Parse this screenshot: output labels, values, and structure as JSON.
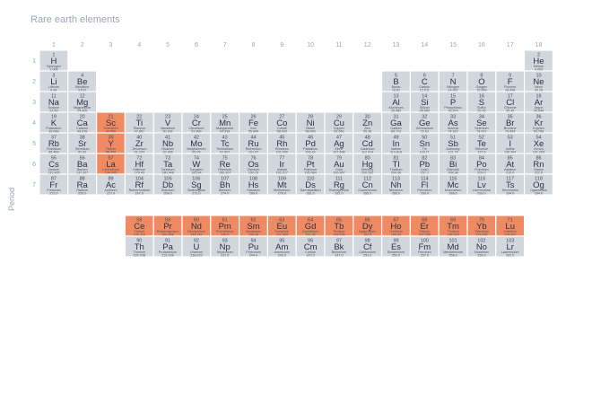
{
  "title": "Rare earth elements",
  "chart_data": {
    "type": "table",
    "title": "Rare earth elements",
    "ylabel": "Period",
    "xlabel": "",
    "group_labels": [
      "1",
      "2",
      "3",
      "4",
      "5",
      "6",
      "7",
      "8",
      "9",
      "10",
      "11",
      "12",
      "13",
      "14",
      "15",
      "16",
      "17",
      "18"
    ],
    "period_labels": [
      "1",
      "2",
      "3",
      "4",
      "5",
      "6",
      "7"
    ],
    "colors": {
      "default": "#d2d6dd",
      "rare_earth": "#ef8a62",
      "grid_stroke": "#ffffff"
    },
    "elements": [
      {
        "n": "1",
        "s": "H",
        "name": "Hydrogen",
        "m": "1.008",
        "p": 1,
        "g": 1,
        "r": false
      },
      {
        "n": "2",
        "s": "He",
        "name": "Helium",
        "m": "4.003",
        "p": 1,
        "g": 18,
        "r": false
      },
      {
        "n": "3",
        "s": "Li",
        "name": "Lithium",
        "m": "6.94",
        "p": 2,
        "g": 1,
        "r": false
      },
      {
        "n": "4",
        "s": "Be",
        "name": "Beryllium",
        "m": "9.012",
        "p": 2,
        "g": 2,
        "r": false
      },
      {
        "n": "5",
        "s": "B",
        "name": "Boron",
        "m": "10.81",
        "p": 2,
        "g": 13,
        "r": false
      },
      {
        "n": "6",
        "s": "C",
        "name": "Carbon",
        "m": "12.011",
        "p": 2,
        "g": 14,
        "r": false
      },
      {
        "n": "7",
        "s": "N",
        "name": "Nitrogen",
        "m": "14.007",
        "p": 2,
        "g": 15,
        "r": false
      },
      {
        "n": "8",
        "s": "O",
        "name": "Oxygen",
        "m": "15.999",
        "p": 2,
        "g": 16,
        "r": false
      },
      {
        "n": "9",
        "s": "F",
        "name": "Fluorine",
        "m": "18.998",
        "p": 2,
        "g": 17,
        "r": false
      },
      {
        "n": "10",
        "s": "Ne",
        "name": "Neon",
        "m": "20.18",
        "p": 2,
        "g": 18,
        "r": false
      },
      {
        "n": "11",
        "s": "Na",
        "name": "Sodium",
        "m": "22.99",
        "p": 3,
        "g": 1,
        "r": false
      },
      {
        "n": "12",
        "s": "Mg",
        "name": "Magnesium",
        "m": "24.305",
        "p": 3,
        "g": 2,
        "r": false
      },
      {
        "n": "13",
        "s": "Al",
        "name": "Aluminum",
        "m": "26.982",
        "p": 3,
        "g": 13,
        "r": false
      },
      {
        "n": "14",
        "s": "Si",
        "name": "Silicon",
        "m": "28.085",
        "p": 3,
        "g": 14,
        "r": false
      },
      {
        "n": "15",
        "s": "P",
        "name": "Phosphorus",
        "m": "30.974",
        "p": 3,
        "g": 15,
        "r": false
      },
      {
        "n": "16",
        "s": "S",
        "name": "Sulfur",
        "m": "32.06",
        "p": 3,
        "g": 16,
        "r": false
      },
      {
        "n": "17",
        "s": "Cl",
        "name": "Chlorine",
        "m": "35.45",
        "p": 3,
        "g": 17,
        "r": false
      },
      {
        "n": "18",
        "s": "Ar",
        "name": "Argon",
        "m": "39.948",
        "p": 3,
        "g": 18,
        "r": false
      },
      {
        "n": "19",
        "s": "K",
        "name": "Potassium",
        "m": "39.098",
        "p": 4,
        "g": 1,
        "r": false
      },
      {
        "n": "20",
        "s": "Ca",
        "name": "Calcium",
        "m": "40.078",
        "p": 4,
        "g": 2,
        "r": false
      },
      {
        "n": "21",
        "s": "Sc",
        "name": "Scandium",
        "m": "44.956",
        "p": 4,
        "g": 3,
        "r": true
      },
      {
        "n": "22",
        "s": "Ti",
        "name": "Titanium",
        "m": "47.867",
        "p": 4,
        "g": 4,
        "r": false
      },
      {
        "n": "23",
        "s": "V",
        "name": "Vanadium",
        "m": "50.942",
        "p": 4,
        "g": 5,
        "r": false
      },
      {
        "n": "24",
        "s": "Cr",
        "name": "Chromium",
        "m": "51.996",
        "p": 4,
        "g": 6,
        "r": false
      },
      {
        "n": "25",
        "s": "Mn",
        "name": "Manganese",
        "m": "54.938",
        "p": 4,
        "g": 7,
        "r": false
      },
      {
        "n": "26",
        "s": "Fe",
        "name": "Iron",
        "m": "55.845",
        "p": 4,
        "g": 8,
        "r": false
      },
      {
        "n": "27",
        "s": "Co",
        "name": "Cobalt",
        "m": "58.933",
        "p": 4,
        "g": 9,
        "r": false
      },
      {
        "n": "28",
        "s": "Ni",
        "name": "Nickel",
        "m": "58.693",
        "p": 4,
        "g": 10,
        "r": false
      },
      {
        "n": "29",
        "s": "Cu",
        "name": "Copper",
        "m": "63.546",
        "p": 4,
        "g": 11,
        "r": false
      },
      {
        "n": "30",
        "s": "Zn",
        "name": "Zinc",
        "m": "65.38",
        "p": 4,
        "g": 12,
        "r": false
      },
      {
        "n": "31",
        "s": "Ga",
        "name": "Gallium",
        "m": "69.723",
        "p": 4,
        "g": 13,
        "r": false
      },
      {
        "n": "32",
        "s": "Ge",
        "name": "Germanium",
        "m": "72.63",
        "p": 4,
        "g": 14,
        "r": false
      },
      {
        "n": "33",
        "s": "As",
        "name": "Arsenic",
        "m": "74.922",
        "p": 4,
        "g": 15,
        "r": false
      },
      {
        "n": "34",
        "s": "Se",
        "name": "Selenium",
        "m": "78.971",
        "p": 4,
        "g": 16,
        "r": false
      },
      {
        "n": "35",
        "s": "Br",
        "name": "Bromine",
        "m": "79.904",
        "p": 4,
        "g": 17,
        "r": false
      },
      {
        "n": "36",
        "s": "Kr",
        "name": "Krypton",
        "m": "83.798",
        "p": 4,
        "g": 18,
        "r": false
      },
      {
        "n": "37",
        "s": "Rb",
        "name": "Rubidium",
        "m": "85.468",
        "p": 5,
        "g": 1,
        "r": false
      },
      {
        "n": "38",
        "s": "Sr",
        "name": "Strontium",
        "m": "87.62",
        "p": 5,
        "g": 2,
        "r": false
      },
      {
        "n": "39",
        "s": "Y",
        "name": "Yttrium",
        "m": "88.906",
        "p": 5,
        "g": 3,
        "r": true
      },
      {
        "n": "40",
        "s": "Zr",
        "name": "Zirconium",
        "m": "91.224",
        "p": 5,
        "g": 4,
        "r": false
      },
      {
        "n": "41",
        "s": "Nb",
        "name": "Niobium",
        "m": "92.906",
        "p": 5,
        "g": 5,
        "r": false
      },
      {
        "n": "42",
        "s": "Mo",
        "name": "Molybdenum",
        "m": "95.95",
        "p": 5,
        "g": 6,
        "r": false
      },
      {
        "n": "43",
        "s": "Tc",
        "name": "Technetium",
        "m": "97.907",
        "p": 5,
        "g": 7,
        "r": false
      },
      {
        "n": "44",
        "s": "Ru",
        "name": "Ruthenium",
        "m": "101.07",
        "p": 5,
        "g": 8,
        "r": false
      },
      {
        "n": "45",
        "s": "Rh",
        "name": "Rhodium",
        "m": "102.906",
        "p": 5,
        "g": 9,
        "r": false
      },
      {
        "n": "46",
        "s": "Pd",
        "name": "Palladium",
        "m": "106.42",
        "p": 5,
        "g": 10,
        "r": false
      },
      {
        "n": "47",
        "s": "Ag",
        "name": "Silver",
        "m": "107.868",
        "p": 5,
        "g": 11,
        "r": false
      },
      {
        "n": "48",
        "s": "Cd",
        "name": "Cadmium",
        "m": "112.414",
        "p": 5,
        "g": 12,
        "r": false
      },
      {
        "n": "49",
        "s": "In",
        "name": "Indium",
        "m": "114.818",
        "p": 5,
        "g": 13,
        "r": false
      },
      {
        "n": "50",
        "s": "Sn",
        "name": "Tin",
        "m": "118.71",
        "p": 5,
        "g": 14,
        "r": false
      },
      {
        "n": "51",
        "s": "Sb",
        "name": "Antimony",
        "m": "121.76",
        "p": 5,
        "g": 15,
        "r": false
      },
      {
        "n": "52",
        "s": "Te",
        "name": "Tellurium",
        "m": "127.6",
        "p": 5,
        "g": 16,
        "r": false
      },
      {
        "n": "53",
        "s": "I",
        "name": "Iodine",
        "m": "126.904",
        "p": 5,
        "g": 17,
        "r": false
      },
      {
        "n": "54",
        "s": "Xe",
        "name": "Xenon",
        "m": "131.293",
        "p": 5,
        "g": 18,
        "r": false
      },
      {
        "n": "55",
        "s": "Cs",
        "name": "Cesium",
        "m": "132.905",
        "p": 6,
        "g": 1,
        "r": false
      },
      {
        "n": "56",
        "s": "Ba",
        "name": "Barium",
        "m": "137.327",
        "p": 6,
        "g": 2,
        "r": false
      },
      {
        "n": "57",
        "s": "La",
        "name": "Lanthanum",
        "m": "138.905",
        "p": 6,
        "g": 3,
        "r": true
      },
      {
        "n": "72",
        "s": "Hf",
        "name": "Hafnium",
        "m": "178.49",
        "p": 6,
        "g": 4,
        "r": false
      },
      {
        "n": "73",
        "s": "Ta",
        "name": "Tantalum",
        "m": "180.948",
        "p": 6,
        "g": 5,
        "r": false
      },
      {
        "n": "74",
        "s": "W",
        "name": "Tungsten",
        "m": "183.84",
        "p": 6,
        "g": 6,
        "r": false
      },
      {
        "n": "75",
        "s": "Re",
        "name": "Rhenium",
        "m": "186.207",
        "p": 6,
        "g": 7,
        "r": false
      },
      {
        "n": "76",
        "s": "Os",
        "name": "Osmium",
        "m": "190.23",
        "p": 6,
        "g": 8,
        "r": false
      },
      {
        "n": "77",
        "s": "Ir",
        "name": "Iridium",
        "m": "192.217",
        "p": 6,
        "g": 9,
        "r": false
      },
      {
        "n": "78",
        "s": "Pt",
        "name": "Platinum",
        "m": "195.084",
        "p": 6,
        "g": 10,
        "r": false
      },
      {
        "n": "79",
        "s": "Au",
        "name": "Gold",
        "m": "196.967",
        "p": 6,
        "g": 11,
        "r": false
      },
      {
        "n": "80",
        "s": "Hg",
        "name": "Mercury",
        "m": "200.592",
        "p": 6,
        "g": 12,
        "r": false
      },
      {
        "n": "81",
        "s": "Tl",
        "name": "Thallium",
        "m": "204.38",
        "p": 6,
        "g": 13,
        "r": false
      },
      {
        "n": "82",
        "s": "Pb",
        "name": "Lead",
        "m": "207.2",
        "p": 6,
        "g": 14,
        "r": false
      },
      {
        "n": "83",
        "s": "Bi",
        "name": "Bismuth",
        "m": "208.98",
        "p": 6,
        "g": 15,
        "r": false
      },
      {
        "n": "84",
        "s": "Po",
        "name": "Polonium",
        "m": "209.0",
        "p": 6,
        "g": 16,
        "r": false
      },
      {
        "n": "85",
        "s": "At",
        "name": "Astatine",
        "m": "210.0",
        "p": 6,
        "g": 17,
        "r": false
      },
      {
        "n": "86",
        "s": "Rn",
        "name": "Radon",
        "m": "222.0",
        "p": 6,
        "g": 18,
        "r": false
      },
      {
        "n": "87",
        "s": "Fr",
        "name": "Francium",
        "m": "223.0",
        "p": 7,
        "g": 1,
        "r": false
      },
      {
        "n": "88",
        "s": "Ra",
        "name": "Radium",
        "m": "226.0",
        "p": 7,
        "g": 2,
        "r": false
      },
      {
        "n": "89",
        "s": "Ac",
        "name": "Actinium",
        "m": "227.0",
        "p": 7,
        "g": 3,
        "r": false
      },
      {
        "n": "104",
        "s": "Rf",
        "name": "Rutherfordium",
        "m": "267.0",
        "p": 7,
        "g": 4,
        "r": false
      },
      {
        "n": "105",
        "s": "Db",
        "name": "Dubnium",
        "m": "268.0",
        "p": 7,
        "g": 5,
        "r": false
      },
      {
        "n": "106",
        "s": "Sg",
        "name": "Seaborgium",
        "m": "271.0",
        "p": 7,
        "g": 6,
        "r": false
      },
      {
        "n": "107",
        "s": "Bh",
        "name": "Bohrium",
        "m": "274.0",
        "p": 7,
        "g": 7,
        "r": false
      },
      {
        "n": "108",
        "s": "Hs",
        "name": "Hassium",
        "m": "269.0",
        "p": 7,
        "g": 8,
        "r": false
      },
      {
        "n": "109",
        "s": "Mt",
        "name": "Meitnerium",
        "m": "276.0",
        "p": 7,
        "g": 9,
        "r": false
      },
      {
        "n": "110",
        "s": "Ds",
        "name": "Darmstadtium",
        "m": "281.0",
        "p": 7,
        "g": 10,
        "r": false
      },
      {
        "n": "111",
        "s": "Rg",
        "name": "Roentgenium",
        "m": "281.0",
        "p": 7,
        "g": 11,
        "r": false
      },
      {
        "n": "112",
        "s": "Cn",
        "name": "Copernicium",
        "m": "285.0",
        "p": 7,
        "g": 12,
        "r": false
      },
      {
        "n": "113",
        "s": "Nh",
        "name": "Nihonium",
        "m": "286.0",
        "p": 7,
        "g": 13,
        "r": false
      },
      {
        "n": "114",
        "s": "Fl",
        "name": "Flerovium",
        "m": "289.0",
        "p": 7,
        "g": 14,
        "r": false
      },
      {
        "n": "115",
        "s": "Mc",
        "name": "Moscovium",
        "m": "288.0",
        "p": 7,
        "g": 15,
        "r": false
      },
      {
        "n": "116",
        "s": "Lv",
        "name": "Livermorium",
        "m": "293.0",
        "p": 7,
        "g": 16,
        "r": false
      },
      {
        "n": "117",
        "s": "Ts",
        "name": "Tennessine",
        "m": "294.0",
        "p": 7,
        "g": 17,
        "r": false
      },
      {
        "n": "118",
        "s": "Og",
        "name": "Oganesson",
        "m": "294.0",
        "p": 7,
        "g": 18,
        "r": false
      },
      {
        "n": "58",
        "s": "Ce",
        "name": "Cerium",
        "m": "140.116",
        "p": 9,
        "g": 4,
        "r": true
      },
      {
        "n": "59",
        "s": "Pr",
        "name": "Praseodymium",
        "m": "140.908",
        "p": 9,
        "g": 5,
        "r": true
      },
      {
        "n": "60",
        "s": "Nd",
        "name": "Neodymium",
        "m": "144.242",
        "p": 9,
        "g": 6,
        "r": true
      },
      {
        "n": "61",
        "s": "Pm",
        "name": "Promethium",
        "m": "145.0",
        "p": 9,
        "g": 7,
        "r": true
      },
      {
        "n": "62",
        "s": "Sm",
        "name": "Samarium",
        "m": "150.36",
        "p": 9,
        "g": 8,
        "r": true
      },
      {
        "n": "63",
        "s": "Eu",
        "name": "Europium",
        "m": "151.964",
        "p": 9,
        "g": 9,
        "r": true
      },
      {
        "n": "64",
        "s": "Gd",
        "name": "Gadolinium",
        "m": "157.25",
        "p": 9,
        "g": 10,
        "r": true
      },
      {
        "n": "65",
        "s": "Tb",
        "name": "Terbium",
        "m": "158.925",
        "p": 9,
        "g": 11,
        "r": true
      },
      {
        "n": "66",
        "s": "Dy",
        "name": "Dysprosium",
        "m": "162.5",
        "p": 9,
        "g": 12,
        "r": true
      },
      {
        "n": "67",
        "s": "Ho",
        "name": "Holmium",
        "m": "164.93",
        "p": 9,
        "g": 13,
        "r": true
      },
      {
        "n": "68",
        "s": "Er",
        "name": "Erbium",
        "m": "167.259",
        "p": 9,
        "g": 14,
        "r": true
      },
      {
        "n": "69",
        "s": "Tm",
        "name": "Thulium",
        "m": "168.934",
        "p": 9,
        "g": 15,
        "r": true
      },
      {
        "n": "70",
        "s": "Yb",
        "name": "Ytterbium",
        "m": "173.045",
        "p": 9,
        "g": 16,
        "r": true
      },
      {
        "n": "71",
        "s": "Lu",
        "name": "Lutetium",
        "m": "174.967",
        "p": 9,
        "g": 17,
        "r": true
      },
      {
        "n": "90",
        "s": "Th",
        "name": "Thorium",
        "m": "232.038",
        "p": 10,
        "g": 4,
        "r": false
      },
      {
        "n": "91",
        "s": "Pa",
        "name": "Protactinium",
        "m": "231.036",
        "p": 10,
        "g": 5,
        "r": false
      },
      {
        "n": "92",
        "s": "U",
        "name": "Uranium",
        "m": "238.029",
        "p": 10,
        "g": 6,
        "r": false
      },
      {
        "n": "93",
        "s": "Np",
        "name": "Neptunium",
        "m": "237.0",
        "p": 10,
        "g": 7,
        "r": false
      },
      {
        "n": "94",
        "s": "Pu",
        "name": "Plutonium",
        "m": "244.0",
        "p": 10,
        "g": 8,
        "r": false
      },
      {
        "n": "95",
        "s": "Am",
        "name": "Americium",
        "m": "243.0",
        "p": 10,
        "g": 9,
        "r": false
      },
      {
        "n": "96",
        "s": "Cm",
        "name": "Curium",
        "m": "247.0",
        "p": 10,
        "g": 10,
        "r": false
      },
      {
        "n": "97",
        "s": "Bk",
        "name": "Berkelium",
        "m": "247.0",
        "p": 10,
        "g": 11,
        "r": false
      },
      {
        "n": "98",
        "s": "Cf",
        "name": "Californium",
        "m": "251.0",
        "p": 10,
        "g": 12,
        "r": false
      },
      {
        "n": "99",
        "s": "Es",
        "name": "Einsteinium",
        "m": "252.0",
        "p": 10,
        "g": 13,
        "r": false
      },
      {
        "n": "100",
        "s": "Fm",
        "name": "Fermium",
        "m": "257.0",
        "p": 10,
        "g": 14,
        "r": false
      },
      {
        "n": "101",
        "s": "Md",
        "name": "Mendelevium",
        "m": "258.0",
        "p": 10,
        "g": 15,
        "r": false
      },
      {
        "n": "102",
        "s": "No",
        "name": "Nobelium",
        "m": "259.0",
        "p": 10,
        "g": 16,
        "r": false
      },
      {
        "n": "103",
        "s": "Lr",
        "name": "Lawrencium",
        "m": "262.0",
        "p": 10,
        "g": 17,
        "r": false
      }
    ]
  }
}
